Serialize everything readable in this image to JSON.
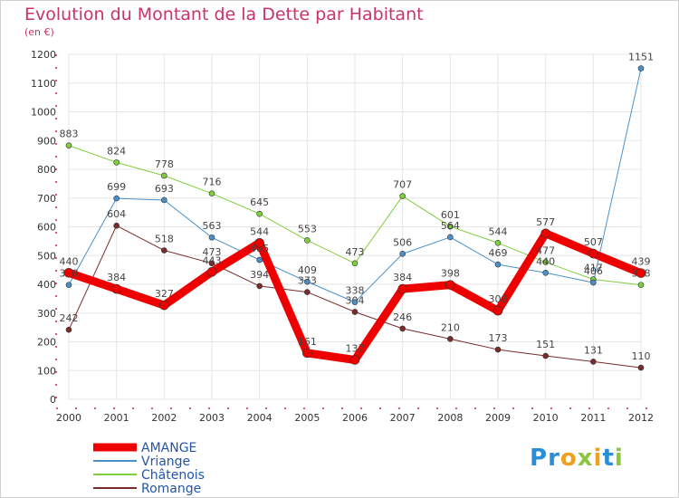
{
  "chart_data": {
    "type": "line",
    "title": "Evolution du Montant de la Dette par Habitant",
    "subtitle": "(en €)",
    "xlabel": "",
    "ylabel": "",
    "ylim": [
      0,
      1200
    ],
    "yticks": [
      0,
      100,
      200,
      300,
      400,
      500,
      600,
      700,
      800,
      900,
      1000,
      1100,
      1200
    ],
    "x": [
      "2000",
      "2001",
      "2002",
      "2003",
      "2004",
      "2005",
      "2006",
      "2007",
      "2008",
      "2009",
      "2010",
      "2011",
      "2012"
    ],
    "grid": true,
    "legend_position": "bottom-left",
    "series": [
      {
        "name": "Romange",
        "color": "#7a2b2b",
        "width": 1,
        "values": [
          242,
          604,
          518,
          473,
          394,
          373,
          304,
          246,
          210,
          173,
          151,
          131,
          110
        ]
      },
      {
        "name": "Châtenois",
        "color": "#7ecf3d",
        "width": 1,
        "values": [
          883,
          824,
          778,
          716,
          645,
          553,
          473,
          707,
          601,
          544,
          477,
          417,
          398
        ]
      },
      {
        "name": "Vriange",
        "color": "#4a90c8",
        "width": 1,
        "values": [
          398,
          699,
          693,
          563,
          485,
          409,
          338,
          506,
          564,
          469,
          440,
          406,
          1151
        ]
      },
      {
        "name": "AMANGE",
        "color": "#ee0000",
        "width": 9,
        "values": [
          440,
          384,
          327,
          443,
          544,
          161,
          137,
          384,
          398,
          308,
          577,
          507,
          439
        ]
      }
    ],
    "legend_order": [
      "AMANGE",
      "Vriange",
      "Châtenois",
      "Romange"
    ]
  },
  "logo": {
    "text": "Proxiti",
    "letters": [
      "P",
      "r",
      "o",
      "x",
      "i",
      "t",
      "i"
    ],
    "colors": [
      "#2a8fd8",
      "#2a8fd8",
      "#f0a020",
      "#8cc63e",
      "#f0a020",
      "#2a8fd8",
      "#8cc63e"
    ]
  }
}
